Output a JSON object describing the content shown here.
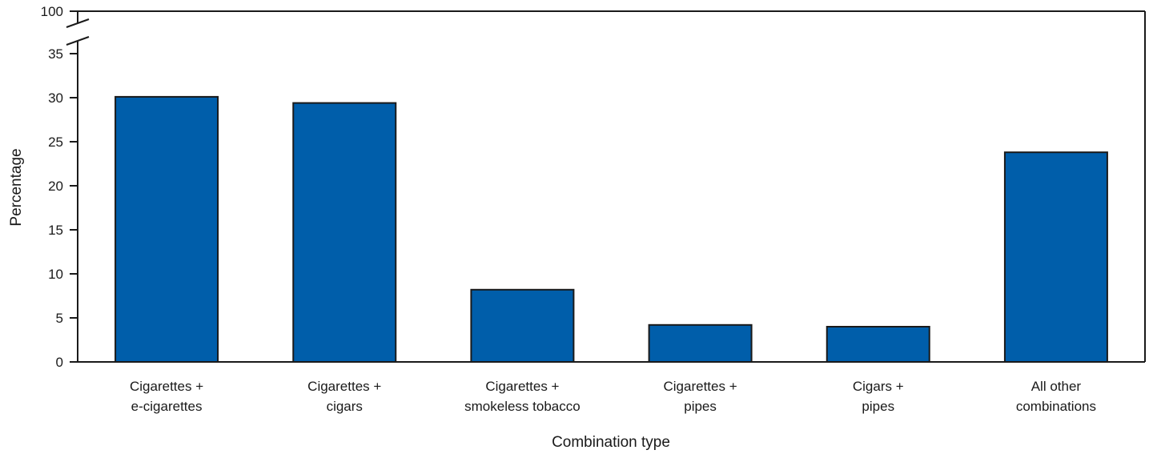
{
  "chart_data": {
    "type": "bar",
    "title": "",
    "xlabel": "Combination type",
    "ylabel": "Percentage",
    "categories": [
      [
        "Cigarettes +",
        "e-cigarettes"
      ],
      [
        "Cigarettes +",
        "cigars"
      ],
      [
        "Cigarettes +",
        "smokeless tobacco"
      ],
      [
        "Cigarettes +",
        "pipes"
      ],
      [
        "Cigars +",
        "pipes"
      ],
      [
        "All other",
        "combinations"
      ]
    ],
    "values": [
      30.1,
      29.4,
      8.2,
      4.2,
      4.0,
      23.8
    ],
    "ylim": [
      0,
      35
    ],
    "yticks": [
      0,
      5,
      10,
      15,
      20,
      25,
      30,
      35
    ],
    "axis_break_top_label": "100",
    "grid": false,
    "legend": "none",
    "colors": {
      "bar_fill": "#005eaa",
      "bar_stroke": "#1a1a1a",
      "axis": "#1a1a1a"
    }
  }
}
